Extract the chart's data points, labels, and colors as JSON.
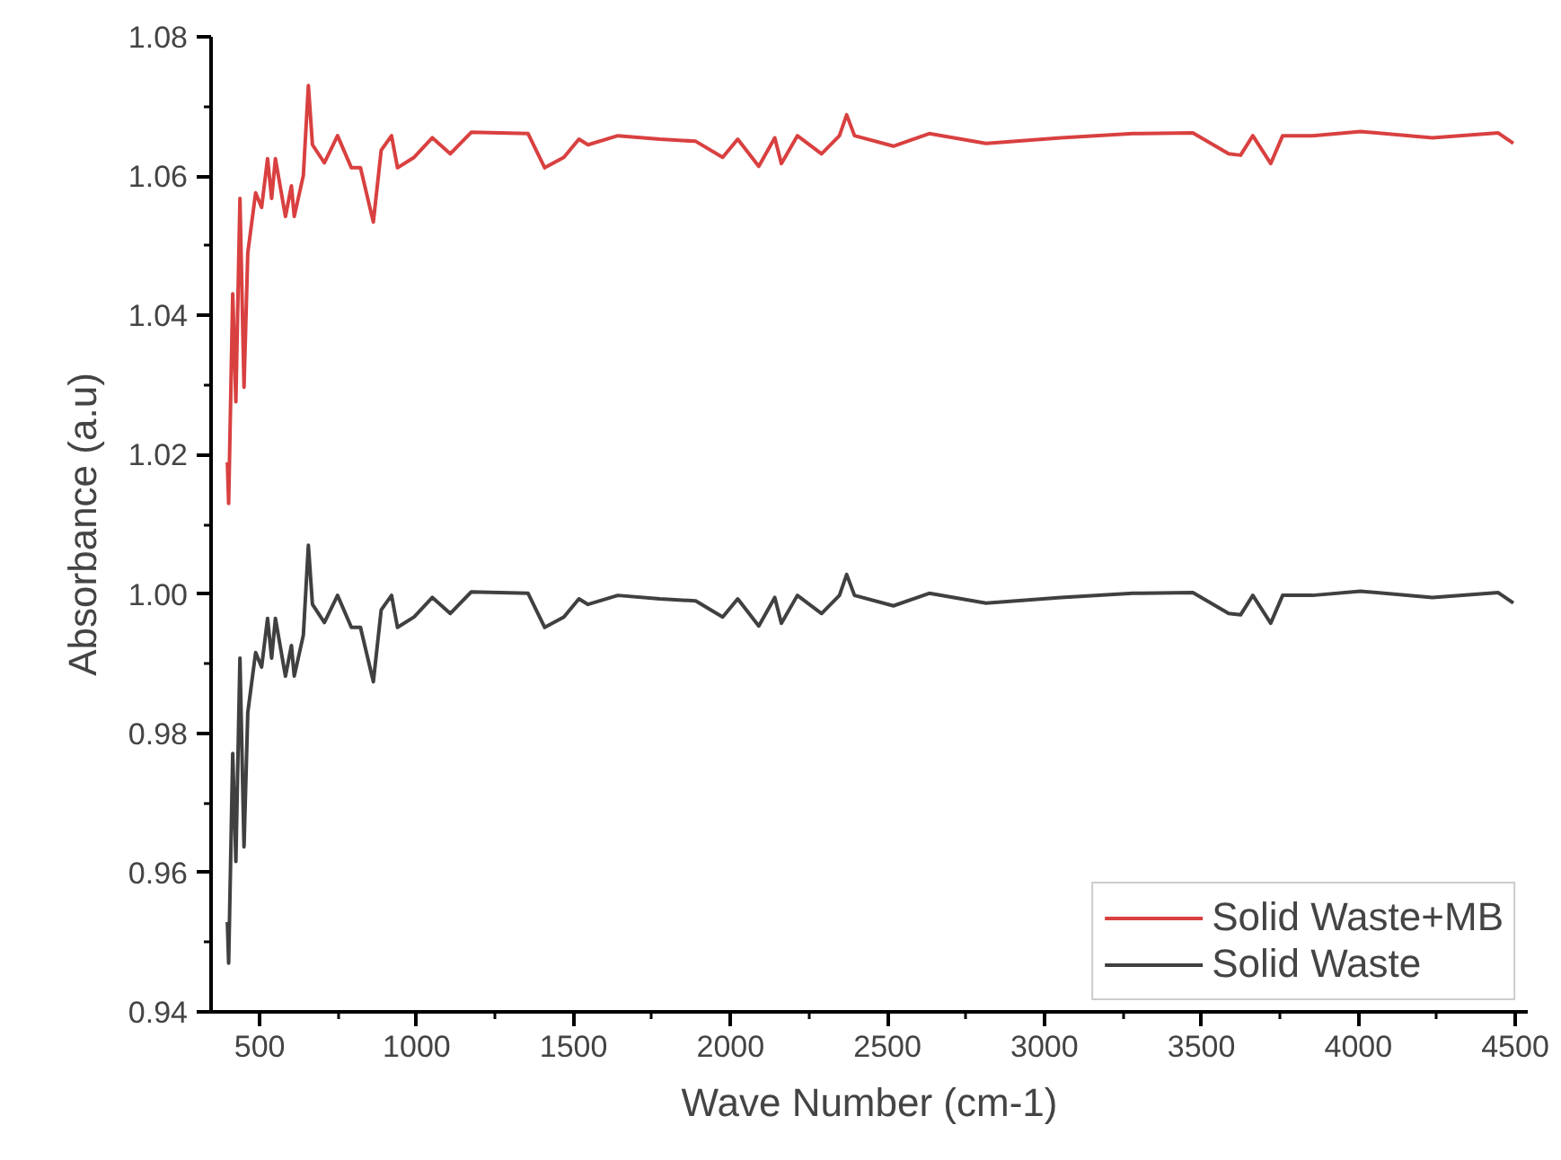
{
  "chart_data": {
    "type": "line",
    "xlabel": "Wave Number (cm-1)",
    "ylabel": "Absorbance (a.u)",
    "x": [
      397,
      401,
      414,
      424,
      437,
      450,
      462,
      487,
      506,
      525,
      538,
      550,
      582,
      601,
      610,
      639,
      655,
      668,
      706,
      748,
      792,
      821,
      862,
      887,
      920,
      939,
      992,
      1050,
      1107,
      1174,
      1355,
      1408,
      1469,
      1517,
      1546,
      1641,
      1775,
      1889,
      1975,
      2023,
      2090,
      2141,
      2162,
      2213,
      2290,
      2347,
      2370,
      2395,
      2519,
      2633,
      2814,
      3053,
      3282,
      3473,
      3587,
      3625,
      3664,
      3721,
      3759,
      3854,
      4007,
      4236,
      4446,
      4494
    ],
    "series": [
      {
        "name": "Solid Waste+MB",
        "color": "#d94040",
        "values": [
          1.0189,
          1.013,
          1.0431,
          1.0276,
          1.0568,
          1.0297,
          1.049,
          1.0576,
          1.0555,
          1.0625,
          1.0568,
          1.0625,
          1.0542,
          1.0586,
          1.0542,
          1.0601,
          1.073,
          1.0645,
          1.0619,
          1.0658,
          1.0612,
          1.0612,
          1.0534,
          1.0637,
          1.0658,
          1.0612,
          1.0627,
          1.0655,
          1.0632,
          1.0663,
          1.0661,
          1.0612,
          1.0627,
          1.0653,
          1.0645,
          1.0658,
          1.0653,
          1.065,
          1.0627,
          1.0653,
          1.0614,
          1.0655,
          1.0618,
          1.0658,
          1.0632,
          1.0658,
          1.0688,
          1.0658,
          1.0643,
          1.0661,
          1.0647,
          1.0655,
          1.0661,
          1.0662,
          1.0632,
          1.063,
          1.0658,
          1.0618,
          1.0658,
          1.0658,
          1.0664,
          1.0655,
          1.0662,
          1.0647
        ]
      },
      {
        "name": "Solid Waste",
        "color": "#404040",
        "values": [
          0.9529,
          0.947,
          0.9771,
          0.9616,
          0.9908,
          0.9637,
          0.983,
          0.9916,
          0.9895,
          0.9965,
          0.9908,
          0.9965,
          0.9882,
          0.9926,
          0.9882,
          0.9941,
          1.007,
          0.9985,
          0.9959,
          0.9998,
          0.9952,
          0.9952,
          0.9874,
          0.9977,
          0.9998,
          0.9952,
          0.9967,
          0.9995,
          0.9972,
          1.0003,
          1.0001,
          0.9952,
          0.9967,
          0.9993,
          0.9985,
          0.9998,
          0.9993,
          0.999,
          0.9967,
          0.9993,
          0.9954,
          0.9995,
          0.9958,
          0.9998,
          0.9972,
          0.9998,
          1.0028,
          0.9998,
          0.9983,
          1.0001,
          0.9987,
          0.9995,
          1.0001,
          1.0002,
          0.9972,
          0.997,
          0.9998,
          0.9958,
          0.9998,
          0.9998,
          1.0004,
          0.9995,
          1.0002,
          0.9987
        ]
      }
    ],
    "xlim": [
      345,
      4540
    ],
    "xticks": [
      500,
      1000,
      1500,
      2000,
      2500,
      3000,
      3500,
      4000,
      4500
    ],
    "ylim": [
      0.94,
      1.08
    ],
    "yticks": [
      0.94,
      0.96,
      0.98,
      {
        "value": 1.0,
        "label": "1.00"
      },
      1.02,
      1.04,
      1.06,
      1.08
    ],
    "grid": false,
    "legend": "bottom right",
    "line_style": "solid",
    "marker": "none"
  }
}
